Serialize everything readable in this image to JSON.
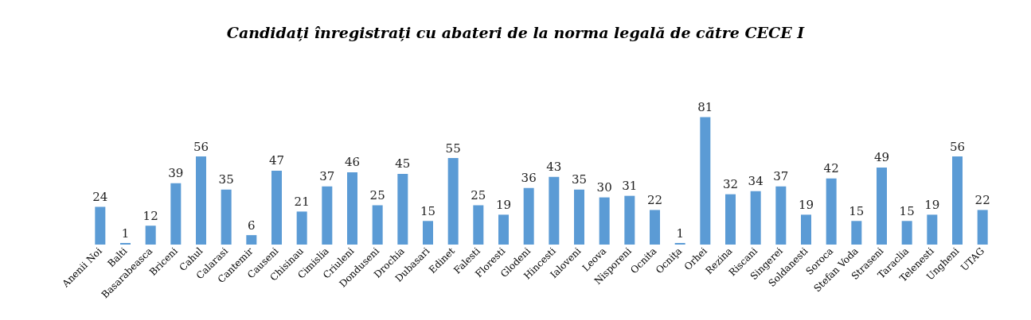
{
  "chart_data": {
    "type": "bar",
    "title": "Candidați înregistrați cu abateri de la norma legală de către CECE I",
    "categories": [
      "Anenii Noi",
      "Balti",
      "Basarabeasca",
      "Briceni",
      "Cahul",
      "Calarasi",
      "Cantemir",
      "Causeni",
      "Chisinau",
      "Cimislia",
      "Criuleni",
      "Donduseni",
      "Drochia",
      "Dubasari",
      "Edinet",
      "Falesti",
      "Floresti",
      "Glodeni",
      "Hincesti",
      "Ialoveni",
      "Leova",
      "Nisporeni",
      "Ocnita",
      "Ocniţa",
      "Orhei",
      "Rezina",
      "Riscani",
      "Singerei",
      "Soldanesti",
      "Soroca",
      "Stefan Voda",
      "Straseni",
      "Taraclia",
      "Telenesti",
      "Ungheni",
      "UTAG"
    ],
    "values": [
      24,
      1,
      12,
      39,
      56,
      35,
      6,
      47,
      21,
      37,
      46,
      25,
      45,
      15,
      55,
      25,
      19,
      36,
      43,
      35,
      30,
      31,
      22,
      1,
      81,
      32,
      34,
      37,
      19,
      42,
      15,
      49,
      15,
      19,
      56,
      22
    ],
    "color": "#5b9bd5",
    "data_labels": true
  }
}
